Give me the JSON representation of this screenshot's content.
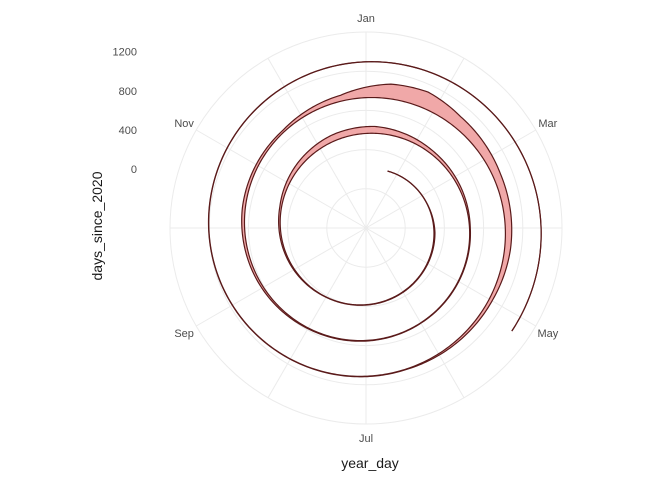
{
  "chart_data": {
    "type": "area",
    "coordinate_system": "polar (spiral, one turn per year)",
    "xlabel": "year_day",
    "ylabel": "days_since_2020",
    "angular_ticks": [
      "Jan",
      "Mar",
      "May",
      "Jul",
      "Sep",
      "Nov"
    ],
    "radial_ticks": [
      0,
      400,
      800,
      1200
    ],
    "radial_range": [
      -600,
      1400
    ],
    "grid": true,
    "series": [
      {
        "fill_color": "#f0a8a8",
        "line_color": "#5a1a1a",
        "start_date": "2020-01-22",
        "end_date": "2023-05-07",
        "band_width_days": [
          [
            "2020-01-22",
            0
          ],
          [
            "2020-03-10",
            2
          ],
          [
            "2020-04-05",
            10
          ],
          [
            "2020-05-10",
            6
          ],
          [
            "2020-08-01",
            3
          ],
          [
            "2020-10-15",
            18
          ],
          [
            "2020-11-15",
            45
          ],
          [
            "2020-12-10",
            65
          ],
          [
            "2021-01-05",
            70
          ],
          [
            "2021-02-10",
            35
          ],
          [
            "2021-04-01",
            8
          ],
          [
            "2021-06-01",
            4
          ],
          [
            "2021-08-01",
            8
          ],
          [
            "2021-09-10",
            22
          ],
          [
            "2021-10-10",
            30
          ],
          [
            "2021-11-20",
            20
          ],
          [
            "2021-12-20",
            60
          ],
          [
            "2022-01-10",
            150
          ],
          [
            "2022-01-25",
            170
          ],
          [
            "2022-02-10",
            120
          ],
          [
            "2022-03-10",
            80
          ],
          [
            "2022-04-10",
            60
          ],
          [
            "2022-05-01",
            35
          ],
          [
            "2022-06-15",
            5
          ],
          [
            "2022-08-01",
            3
          ],
          [
            "2023-05-07",
            0
          ]
        ]
      }
    ]
  }
}
